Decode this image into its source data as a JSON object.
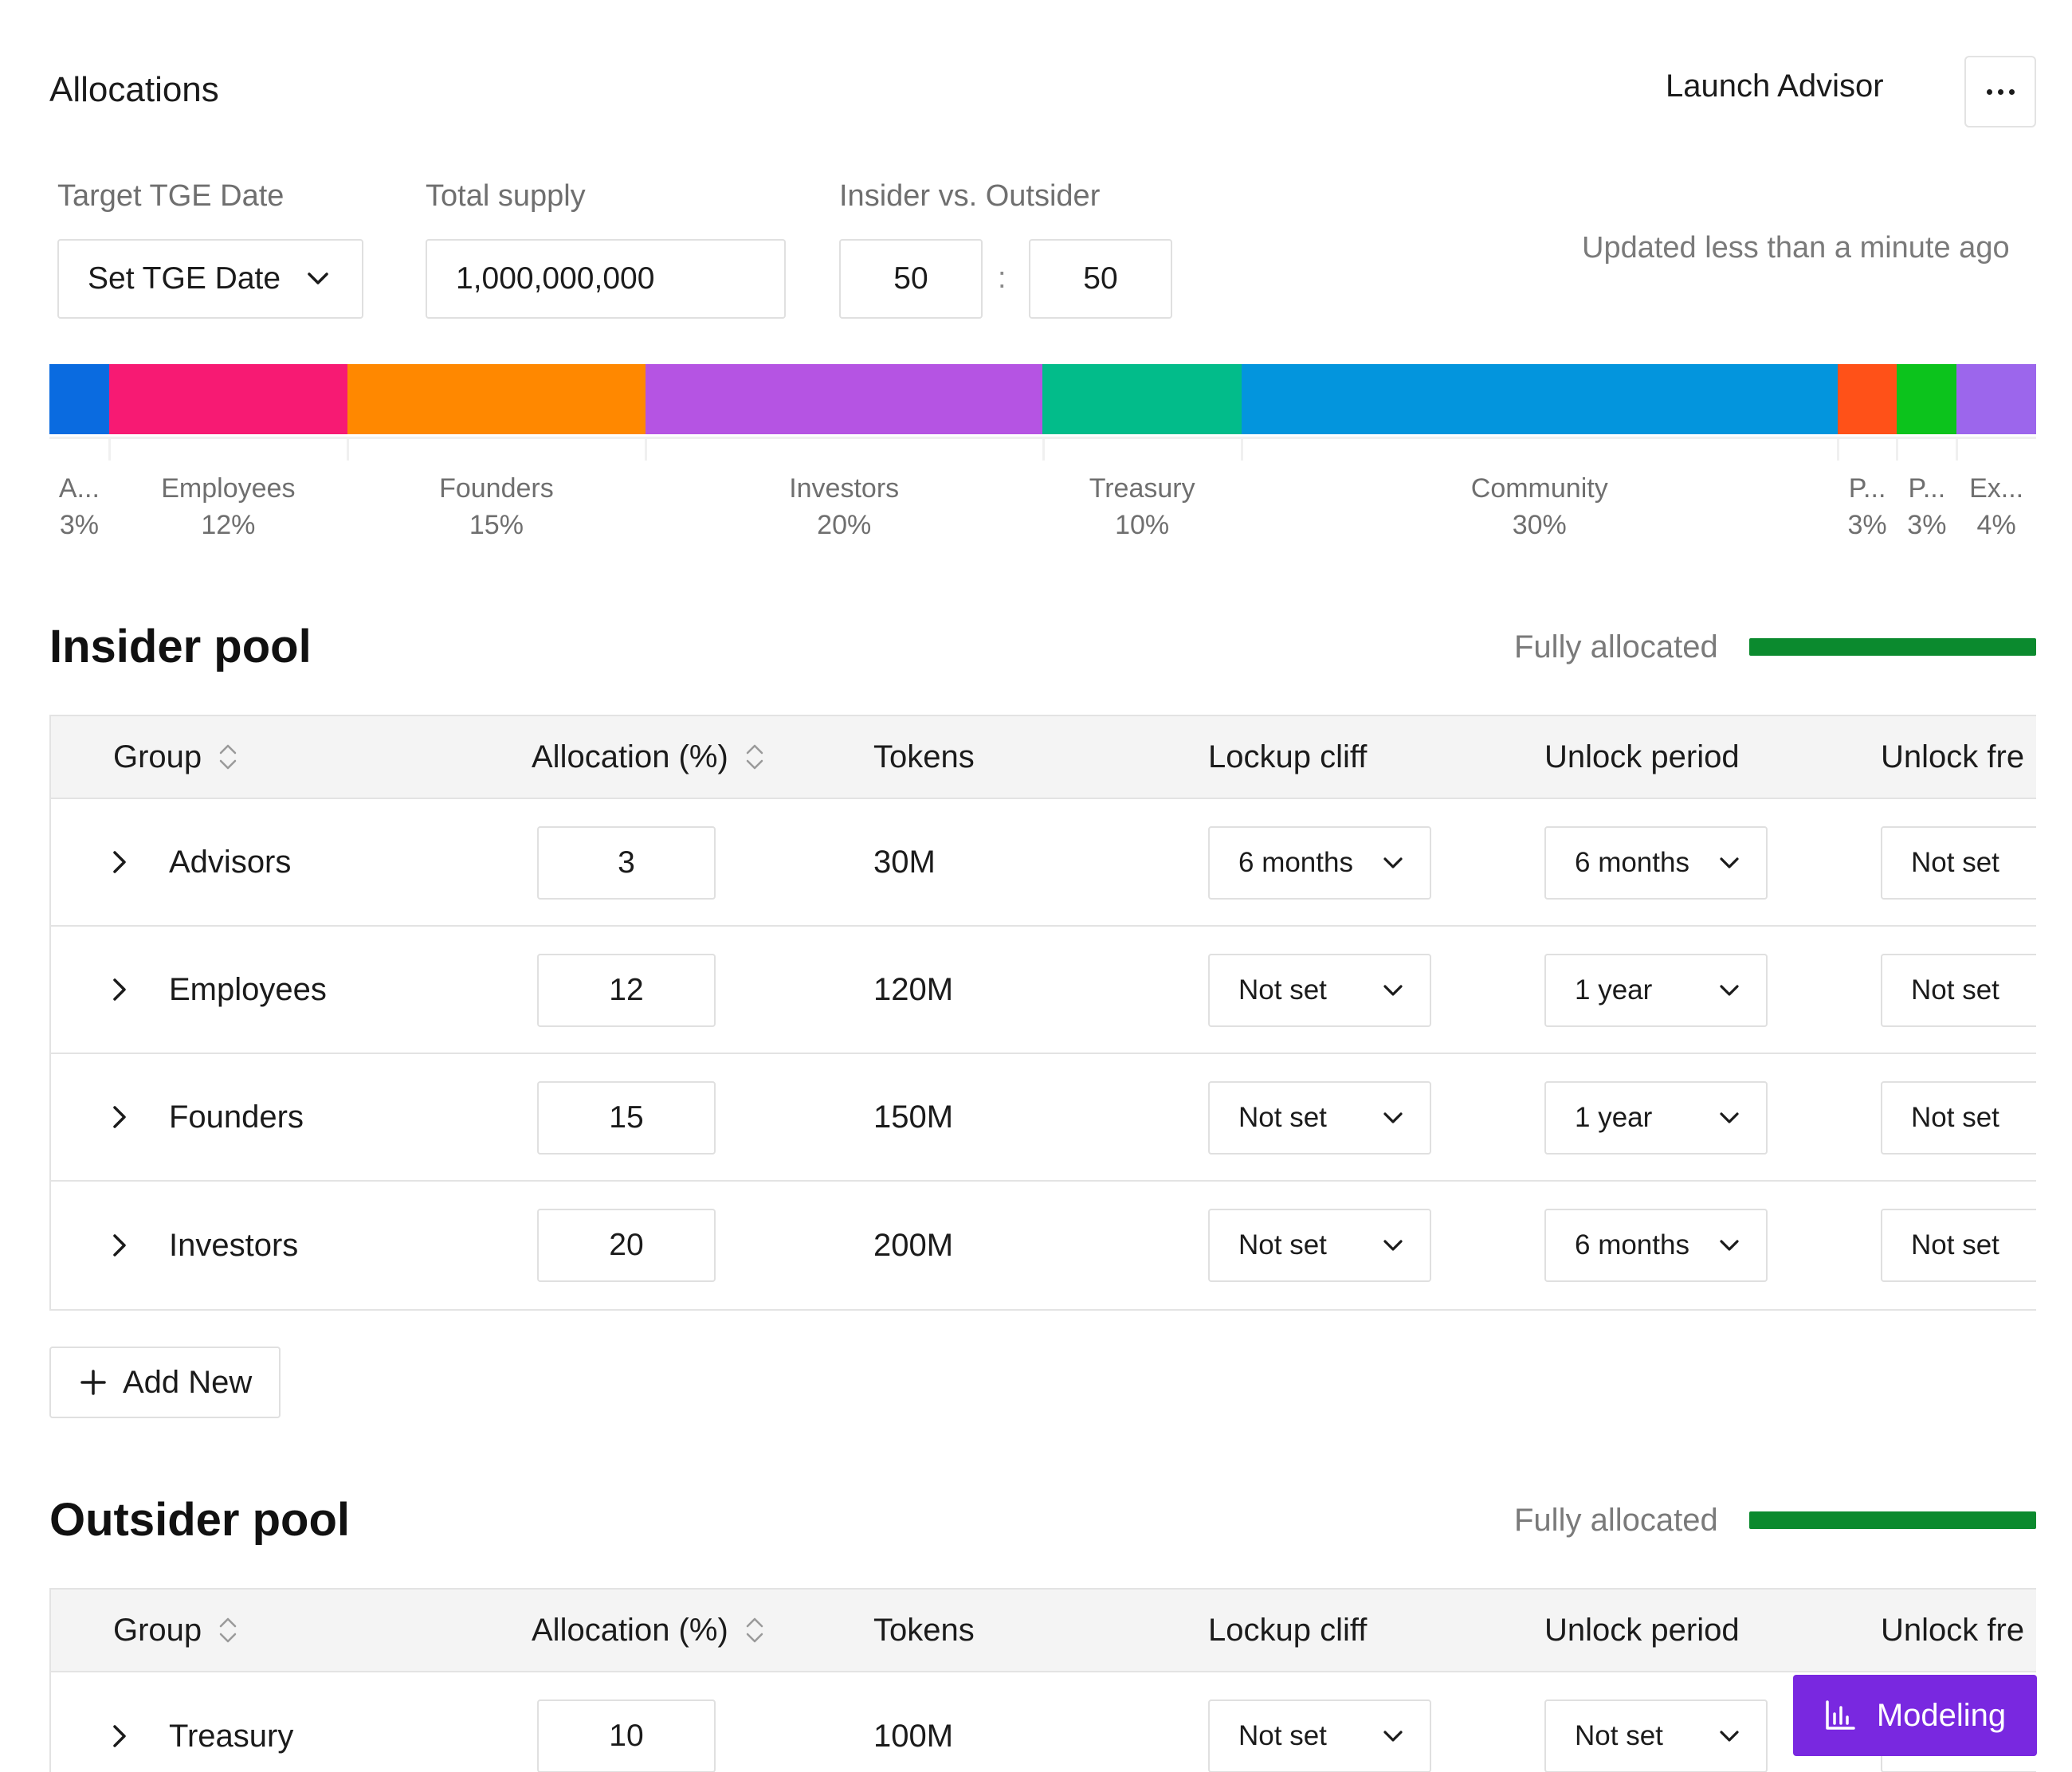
{
  "header": {
    "title": "Allocations",
    "launch_advisor": "Launch Advisor",
    "more_icon": "more-horizontal-icon"
  },
  "settings": {
    "tge_label": "Target TGE Date",
    "tge_value": "Set TGE Date",
    "supply_label": "Total supply",
    "supply_value": "1,000,000,000",
    "ratio_label": "Insider vs. Outsider",
    "insider_ratio": "50",
    "ratio_separator": ":",
    "outsider_ratio": "50",
    "updated": "Updated less than a minute ago"
  },
  "allocation_bar": {
    "segments": [
      {
        "label": "A...",
        "percent_text": "3%",
        "value": 3,
        "color": "#0a6be0"
      },
      {
        "label": "Employees",
        "percent_text": "12%",
        "value": 12,
        "color": "#f71a73"
      },
      {
        "label": "Founders",
        "percent_text": "15%",
        "value": 15,
        "color": "#ff8800"
      },
      {
        "label": "Investors",
        "percent_text": "20%",
        "value": 20,
        "color": "#b554e3"
      },
      {
        "label": "Treasury",
        "percent_text": "10%",
        "value": 10,
        "color": "#02bc8a"
      },
      {
        "label": "Community",
        "percent_text": "30%",
        "value": 30,
        "color": "#0395dd"
      },
      {
        "label": "P...",
        "percent_text": "3%",
        "value": 3,
        "color": "#ff5118"
      },
      {
        "label": "P...",
        "percent_text": "3%",
        "value": 3,
        "color": "#0cc31c"
      },
      {
        "label": "Ex...",
        "percent_text": "4%",
        "value": 4,
        "color": "#9c66ec"
      }
    ]
  },
  "columns": {
    "group": "Group",
    "allocation": "Allocation (%)",
    "tokens": "Tokens",
    "lockup": "Lockup cliff",
    "unlock_period": "Unlock period",
    "unlock_freq": "Unlock fre"
  },
  "insider_pool": {
    "title": "Insider pool",
    "status": "Fully allocated",
    "status_fill": 1.0,
    "status_color": "#0b8a2e",
    "rows": [
      {
        "group": "Advisors",
        "allocation": "3",
        "tokens": "30M",
        "lockup": "6 months",
        "unlock_period": "6 months",
        "unlock_freq": "Not set"
      },
      {
        "group": "Employees",
        "allocation": "12",
        "tokens": "120M",
        "lockup": "Not set",
        "unlock_period": "1 year",
        "unlock_freq": "Not set"
      },
      {
        "group": "Founders",
        "allocation": "15",
        "tokens": "150M",
        "lockup": "Not set",
        "unlock_period": "1 year",
        "unlock_freq": "Not set"
      },
      {
        "group": "Investors",
        "allocation": "20",
        "tokens": "200M",
        "lockup": "Not set",
        "unlock_period": "6 months",
        "unlock_freq": "Not set"
      }
    ],
    "add_new": "Add New"
  },
  "outsider_pool": {
    "title": "Outsider pool",
    "status": "Fully allocated",
    "status_fill": 1.0,
    "status_color": "#0b8a2e",
    "rows": [
      {
        "group": "Treasury",
        "allocation": "10",
        "tokens": "100M",
        "lockup": "Not set",
        "unlock_period": "Not set",
        "unlock_freq": ""
      }
    ]
  },
  "modeling_button": {
    "label": "Modeling",
    "icon": "bar-chart-icon",
    "color": "#7928e0"
  }
}
